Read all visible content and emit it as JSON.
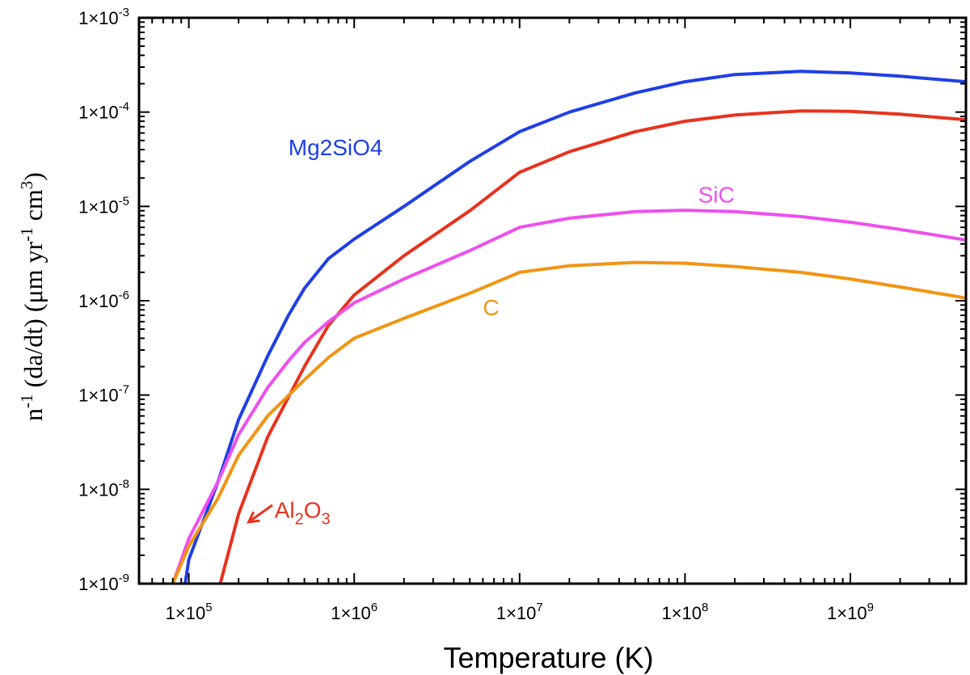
{
  "chart_data": {
    "type": "line",
    "title": "",
    "xlabel": "Temperature (K)",
    "ylabel": {
      "parts": [
        "n",
        "-1",
        " (da/dt) (μm yr",
        "-1",
        " cm",
        "3",
        ")"
      ]
    },
    "xscale": "log",
    "yscale": "log",
    "xlim": [
      50000,
      5000000000
    ],
    "ylim": [
      1e-09,
      0.001
    ],
    "x_ticks": [
      {
        "value": 100000,
        "base": "1×10",
        "exp": "5"
      },
      {
        "value": 1000000,
        "base": "1×10",
        "exp": "6"
      },
      {
        "value": 10000000,
        "base": "1×10",
        "exp": "7"
      },
      {
        "value": 100000000,
        "base": "1×10",
        "exp": "8"
      },
      {
        "value": 1000000000,
        "base": "1×10",
        "exp": "9"
      }
    ],
    "y_ticks": [
      {
        "value": 1e-09,
        "base": "1×10",
        "exp": "-9"
      },
      {
        "value": 1e-08,
        "base": "1×10",
        "exp": "-8"
      },
      {
        "value": 1e-07,
        "base": "1×10",
        "exp": "-7"
      },
      {
        "value": 1e-06,
        "base": "1×10",
        "exp": "-6"
      },
      {
        "value": 1e-05,
        "base": "1×10",
        "exp": "-5"
      },
      {
        "value": 0.0001,
        "base": "1×10",
        "exp": "-4"
      },
      {
        "value": 0.001,
        "base": "1×10",
        "exp": "-3"
      }
    ],
    "grid": false,
    "series": [
      {
        "name": "Mg2SiO4",
        "label_parts": [
          {
            "t": "Mg2SiO4",
            "sub": false
          }
        ],
        "color": "#1f3fe6",
        "label_at": [
          400000,
          3.5e-05
        ],
        "points": [
          [
            95000,
            1e-09
          ],
          [
            100000,
            1.8e-09
          ],
          [
            150000,
            1.2e-08
          ],
          [
            200000,
            5.5e-08
          ],
          [
            300000,
            2.6e-07
          ],
          [
            400000,
            7e-07
          ],
          [
            500000,
            1.35e-06
          ],
          [
            700000,
            2.8e-06
          ],
          [
            1000000,
            4.5e-06
          ],
          [
            2000000,
            1e-05
          ],
          [
            5000000,
            3e-05
          ],
          [
            10000000,
            6.2e-05
          ],
          [
            20000000,
            0.0001
          ],
          [
            50000000,
            0.00016
          ],
          [
            100000000,
            0.00021
          ],
          [
            200000000,
            0.00025
          ],
          [
            500000000,
            0.00027
          ],
          [
            1000000000,
            0.00026
          ],
          [
            2000000000,
            0.00024
          ],
          [
            5000000000,
            0.00021
          ]
        ]
      },
      {
        "name": "Al2O3",
        "label_parts": [
          {
            "t": "Al",
            "sub": false
          },
          {
            "t": "2",
            "sub": true
          },
          {
            "t": "O",
            "sub": false
          },
          {
            "t": "3",
            "sub": true
          }
        ],
        "color": "#e8321e",
        "label_at": [
          330000,
          5e-09
        ],
        "points": [
          [
            155000,
            1e-09
          ],
          [
            200000,
            5.5e-09
          ],
          [
            300000,
            3.6e-08
          ],
          [
            500000,
            2e-07
          ],
          [
            700000,
            5.5e-07
          ],
          [
            1000000,
            1.15e-06
          ],
          [
            2000000,
            3e-06
          ],
          [
            5000000,
            9e-06
          ],
          [
            10000000,
            2.3e-05
          ],
          [
            20000000,
            3.8e-05
          ],
          [
            50000000,
            6.2e-05
          ],
          [
            100000000,
            8e-05
          ],
          [
            200000000,
            9.3e-05
          ],
          [
            500000000,
            0.000103
          ],
          [
            1000000000,
            0.000102
          ],
          [
            2000000000,
            9.5e-05
          ],
          [
            5000000000,
            8.3e-05
          ]
        ]
      },
      {
        "name": "SiC",
        "label_parts": [
          {
            "t": "SiC",
            "sub": false
          }
        ],
        "color": "#ee4fee",
        "label_at": [
          120000000,
          1.1e-05
        ],
        "points": [
          [
            80000,
            1e-09
          ],
          [
            100000,
            3e-09
          ],
          [
            150000,
            1.2e-08
          ],
          [
            200000,
            3.8e-08
          ],
          [
            300000,
            1.2e-07
          ],
          [
            400000,
            2.3e-07
          ],
          [
            500000,
            3.6e-07
          ],
          [
            700000,
            6e-07
          ],
          [
            1000000,
            9.5e-07
          ],
          [
            2000000,
            1.7e-06
          ],
          [
            5000000,
            3.4e-06
          ],
          [
            10000000,
            6e-06
          ],
          [
            20000000,
            7.5e-06
          ],
          [
            50000000,
            8.8e-06
          ],
          [
            100000000,
            9.1e-06
          ],
          [
            200000000,
            8.8e-06
          ],
          [
            500000000,
            7.8e-06
          ],
          [
            1000000000,
            6.8e-06
          ],
          [
            2000000000,
            5.7e-06
          ],
          [
            5000000000,
            4.4e-06
          ]
        ]
      },
      {
        "name": "C",
        "label_parts": [
          {
            "t": "C",
            "sub": false
          }
        ],
        "color": "#f29412",
        "label_at": [
          6000000,
          7e-07
        ],
        "points": [
          [
            80000,
            1e-09
          ],
          [
            100000,
            2.5e-09
          ],
          [
            150000,
            8e-09
          ],
          [
            200000,
            2.3e-08
          ],
          [
            300000,
            6e-08
          ],
          [
            500000,
            1.45e-07
          ],
          [
            700000,
            2.5e-07
          ],
          [
            1000000,
            4e-07
          ],
          [
            2000000,
            6.5e-07
          ],
          [
            5000000,
            1.2e-06
          ],
          [
            10000000,
            2e-06
          ],
          [
            20000000,
            2.35e-06
          ],
          [
            50000000,
            2.55e-06
          ],
          [
            100000000,
            2.5e-06
          ],
          [
            200000000,
            2.3e-06
          ],
          [
            500000000,
            2e-06
          ],
          [
            1000000000,
            1.7e-06
          ],
          [
            2000000000,
            1.4e-06
          ],
          [
            5000000000,
            1.07e-06
          ]
        ]
      }
    ],
    "annotations": [
      {
        "target": "Al2O3",
        "arrow_from": [
          320000,
          6.8e-09
        ],
        "arrow_to": [
          230000,
          4.5e-09
        ]
      }
    ]
  }
}
